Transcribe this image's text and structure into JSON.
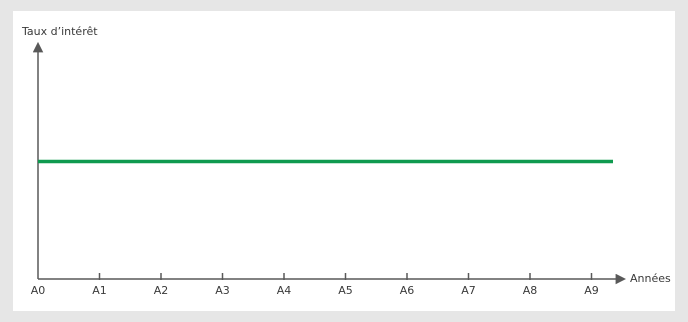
{
  "colors": {
    "background": "#e6e6e6",
    "panel": "#ffffff",
    "axis": "#595959",
    "series": "#0f9a4f"
  },
  "chart_data": {
    "type": "line",
    "title": "",
    "ylabel": "Taux d’intérêt",
    "xlabel": "Années",
    "categories": [
      "A0",
      "A1",
      "A2",
      "A3",
      "A4",
      "A5",
      "A6",
      "A7",
      "A8",
      "A9"
    ],
    "series": [
      {
        "values": [
          1,
          1,
          1,
          1,
          1,
          1,
          1,
          1,
          1,
          1
        ],
        "color": "#0f9a4f"
      }
    ],
    "ylim": [
      0,
      2
    ],
    "grid": false,
    "legend": "none"
  }
}
